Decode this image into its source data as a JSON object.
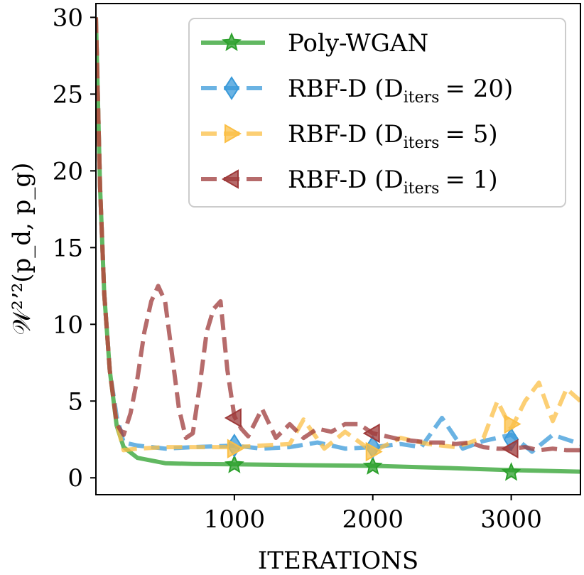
{
  "chart_data": {
    "type": "line",
    "title": "",
    "xlabel": "ITERATIONS",
    "ylabel": "𝒲²ʼ²(p_d, p_g)",
    "xlim": [
      0,
      3500
    ],
    "ylim": [
      -1.1,
      30.9
    ],
    "x_ticks": [
      1000,
      2000,
      3000
    ],
    "x_tick_labels": [
      "1000",
      "2000",
      "3000"
    ],
    "y_ticks": [
      0,
      5,
      10,
      15,
      20,
      25,
      30
    ],
    "y_tick_labels": [
      "0",
      "5",
      "10",
      "15",
      "20",
      "25",
      "30"
    ],
    "legend_position": "top-right",
    "series": [
      {
        "name": "Poly-WGAN",
        "legend_label": "Poly-WGAN",
        "color": "#2ca02c",
        "linestyle": "solid",
        "marker": "star",
        "x": [
          0,
          30,
          60,
          100,
          150,
          200,
          300,
          500,
          700,
          1000,
          1500,
          2000,
          2500,
          3000,
          3500
        ],
        "y": [
          30,
          19,
          12,
          7,
          3.4,
          2.0,
          1.3,
          0.95,
          0.9,
          0.88,
          0.82,
          0.78,
          0.65,
          0.5,
          0.4
        ],
        "markers_x": [
          1000,
          2000,
          3000
        ],
        "markers_y": [
          0.85,
          0.75,
          0.35
        ]
      },
      {
        "name": "RBF-D (D_iters = 20)",
        "legend_label": "RBF-D (D",
        "legend_sub": "iters",
        "legend_value": "= 20)",
        "color": "#3a9ad9",
        "linestyle": "dashed",
        "marker": "diamond",
        "x": [
          0,
          30,
          60,
          100,
          150,
          200,
          300,
          500,
          700,
          1000,
          1200,
          1400,
          1600,
          1800,
          2000,
          2200,
          2350,
          2500,
          2650,
          2800,
          3000,
          3150,
          3300,
          3500
        ],
        "y": [
          30,
          19,
          12,
          7,
          4.0,
          2.3,
          2.1,
          1.9,
          2.0,
          2.1,
          1.9,
          2.0,
          2.3,
          1.9,
          2.0,
          2.2,
          2.0,
          3.9,
          1.9,
          2.4,
          2.8,
          1.7,
          2.8,
          2.2
        ],
        "markers_x": [
          1000,
          2000,
          3000
        ],
        "markers_y": [
          2.1,
          2.0,
          2.5
        ]
      },
      {
        "name": "RBF-D (D_iters = 5)",
        "legend_label": "RBF-D (D",
        "legend_sub": "iters",
        "legend_value": "= 5)",
        "color": "#fbbf45",
        "linestyle": "dashed",
        "marker": "triangle-right",
        "x": [
          0,
          30,
          60,
          100,
          150,
          200,
          300,
          500,
          700,
          1000,
          1200,
          1400,
          1500,
          1650,
          1800,
          2000,
          2200,
          2400,
          2600,
          2800,
          2900,
          3000,
          3100,
          3200,
          3300,
          3400,
          3500
        ],
        "y": [
          30,
          19,
          12,
          7,
          3.6,
          1.8,
          1.9,
          2.0,
          2.0,
          2.0,
          2.1,
          2.2,
          3.8,
          1.9,
          3.0,
          1.7,
          2.6,
          2.2,
          2.0,
          2.6,
          5.0,
          3.2,
          5.0,
          6.2,
          3.7,
          5.8,
          5.0
        ],
        "markers_x": [
          1000,
          2000,
          3000
        ],
        "markers_y": [
          1.9,
          1.7,
          3.5
        ]
      },
      {
        "name": "RBF-D (D_iters = 1)",
        "legend_label": "RBF-D (D",
        "legend_sub": "iters",
        "legend_value": "= 1)",
        "color": "#9e3a3a",
        "linestyle": "dashed",
        "marker": "triangle-left",
        "x": [
          0,
          30,
          60,
          100,
          150,
          200,
          250,
          300,
          350,
          400,
          450,
          500,
          550,
          600,
          650,
          700,
          750,
          800,
          850,
          900,
          950,
          1000,
          1050,
          1100,
          1200,
          1300,
          1400,
          1500,
          1600,
          1700,
          1800,
          1900,
          2000,
          2100,
          2200,
          2300,
          2400,
          2500,
          2600,
          2700,
          2800,
          2900,
          3000,
          3100,
          3200,
          3300,
          3400,
          3500
        ],
        "y": [
          30,
          19,
          12,
          7,
          3.5,
          2.8,
          4.2,
          6.5,
          9.5,
          11.5,
          12.5,
          11.5,
          8.0,
          4.5,
          2.6,
          2.9,
          6.0,
          9.5,
          11.0,
          11.5,
          7.0,
          4.0,
          3.2,
          2.7,
          4.5,
          2.6,
          3.5,
          2.6,
          3.2,
          3.0,
          3.5,
          3.5,
          2.9,
          2.7,
          2.5,
          2.4,
          2.3,
          2.3,
          2.2,
          2.3,
          2.0,
          1.9,
          1.9,
          2.0,
          1.8,
          1.9,
          1.8,
          1.8
        ],
        "markers_x": [
          1000,
          2000,
          3000
        ],
        "markers_y": [
          3.9,
          2.9,
          1.9
        ]
      }
    ]
  }
}
